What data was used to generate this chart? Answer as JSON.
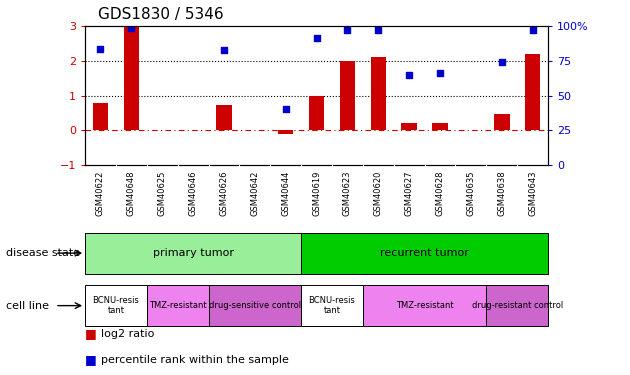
{
  "title": "GDS1830 / 5346",
  "samples": [
    "GSM40622",
    "GSM40648",
    "GSM40625",
    "GSM40646",
    "GSM40626",
    "GSM40642",
    "GSM40644",
    "GSM40619",
    "GSM40623",
    "GSM40620",
    "GSM40627",
    "GSM40628",
    "GSM40635",
    "GSM40638",
    "GSM40643"
  ],
  "log2_ratio": [
    0.78,
    3.0,
    0.0,
    0.0,
    0.72,
    0.0,
    -0.12,
    1.0,
    2.0,
    2.1,
    0.2,
    0.22,
    0.0,
    0.48,
    2.2
  ],
  "percentile": [
    2.35,
    2.95,
    null,
    null,
    2.32,
    null,
    0.62,
    2.65,
    2.9,
    2.88,
    1.6,
    1.65,
    null,
    1.98,
    2.9
  ],
  "ylim_left": [
    -1,
    3
  ],
  "ylim_right": [
    0,
    100
  ],
  "yticks_left": [
    -1,
    0,
    1,
    2,
    3
  ],
  "yticks_right": [
    0,
    25,
    50,
    75,
    100
  ],
  "hlines": [
    1.0,
    2.0
  ],
  "bar_color": "#cc0000",
  "scatter_color": "#0000cc",
  "bar_width": 0.5,
  "disease_state_groups": [
    {
      "label": "primary tumor",
      "start": 0,
      "end": 7,
      "color": "#99ee99"
    },
    {
      "label": "recurrent tumor",
      "start": 7,
      "end": 15,
      "color": "#00cc00"
    }
  ],
  "cell_line_groups": [
    {
      "label": "BCNU-resis\ntant",
      "start": 0,
      "end": 2,
      "color": "#ffffff"
    },
    {
      "label": "TMZ-resistant",
      "start": 2,
      "end": 4,
      "color": "#ee82ee"
    },
    {
      "label": "drug-sensitive control",
      "start": 4,
      "end": 7,
      "color": "#cc66cc"
    },
    {
      "label": "BCNU-resis\ntant",
      "start": 7,
      "end": 9,
      "color": "#ffffff"
    },
    {
      "label": "TMZ-resistant",
      "start": 9,
      "end": 13,
      "color": "#ee82ee"
    },
    {
      "label": "drug-resistant control",
      "start": 13,
      "end": 15,
      "color": "#cc66cc"
    }
  ],
  "legend_items": [
    {
      "label": "log2 ratio",
      "color": "#cc0000"
    },
    {
      "label": "percentile rank within the sample",
      "color": "#0000cc"
    }
  ],
  "left_tick_color": "#cc0000",
  "right_tick_color": "#0000cc",
  "hline0_color": "#cc0000",
  "annotation_disease": "disease state",
  "annotation_cell": "cell line",
  "xtick_bg_color": "#cccccc",
  "bg_color": "#ffffff",
  "title_fontsize": 11,
  "ytick_fontsize": 8,
  "xtick_fontsize": 6,
  "annotation_fontsize": 8,
  "legend_fontsize": 8
}
